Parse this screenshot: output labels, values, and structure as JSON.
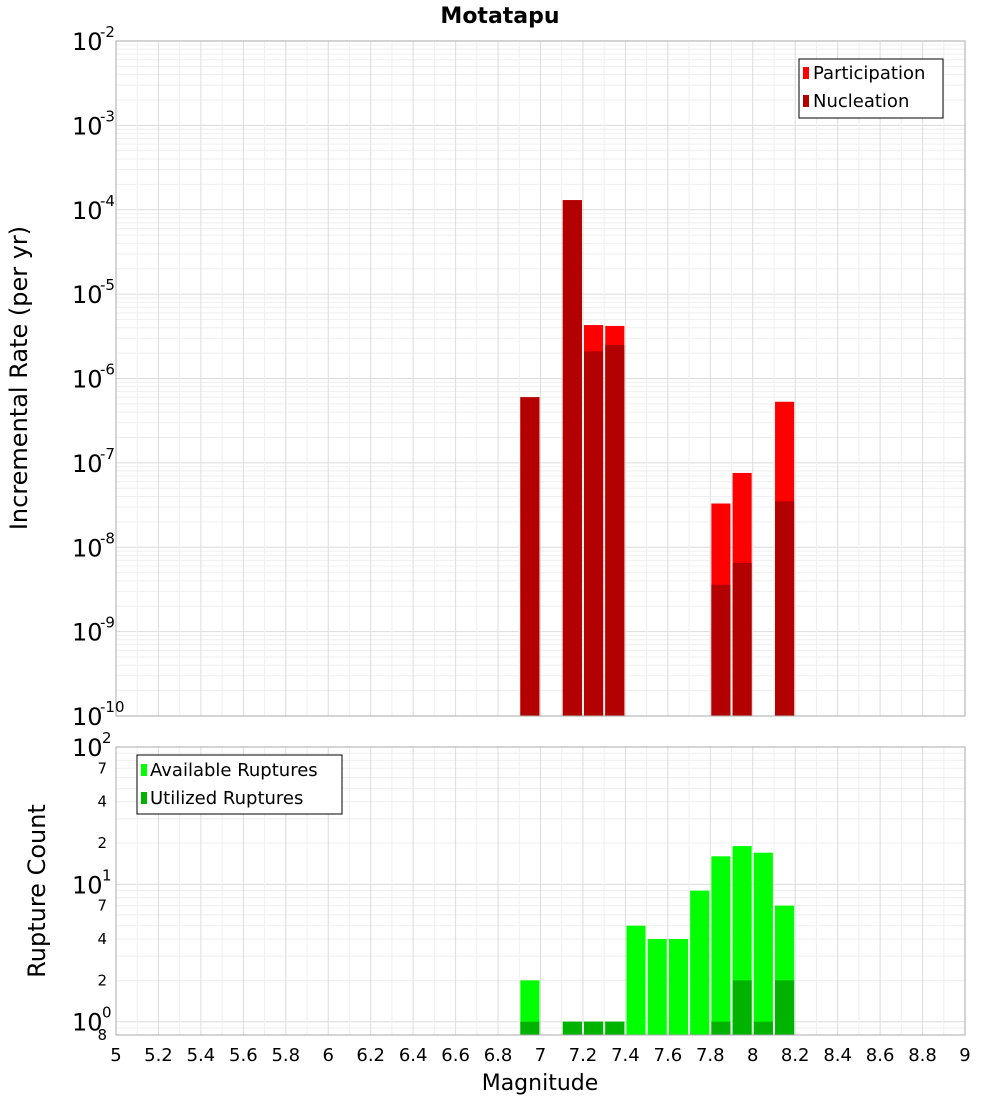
{
  "chart_data": [
    {
      "type": "bar",
      "title": "Motatapu",
      "xlabel": "",
      "ylabel": "Incremental Rate (per yr)",
      "yscale": "log",
      "xlim": [
        5,
        9
      ],
      "ylim": [
        1e-10,
        0.01
      ],
      "grid": true,
      "legend_position": "top-right",
      "y_tick_labels": [
        {
          "value": 1e-10,
          "base": "10",
          "exp": "-10"
        },
        {
          "value": 1e-09,
          "base": "10",
          "exp": "-9"
        },
        {
          "value": 1e-08,
          "base": "10",
          "exp": "-8"
        },
        {
          "value": 1e-07,
          "base": "10",
          "exp": "-7"
        },
        {
          "value": 1e-06,
          "base": "10",
          "exp": "-6"
        },
        {
          "value": 1e-05,
          "base": "10",
          "exp": "-5"
        },
        {
          "value": 0.0001,
          "base": "10",
          "exp": "-4"
        },
        {
          "value": 0.001,
          "base": "10",
          "exp": "-3"
        },
        {
          "value": 0.01,
          "base": "10",
          "exp": "-2"
        }
      ],
      "series": [
        {
          "name": "Participation",
          "color": "#ff0000",
          "x": [
            6.95,
            7.15,
            7.25,
            7.35,
            7.85,
            7.95,
            8.15
          ],
          "values": [
            6e-07,
            0.00013,
            4.3e-06,
            4.2e-06,
            3.3e-08,
            7.6e-08,
            5.3e-07
          ]
        },
        {
          "name": "Nucleation",
          "color": "#b30000",
          "x": [
            6.95,
            7.15,
            7.25,
            7.35,
            7.85,
            7.95,
            8.15
          ],
          "values": [
            6e-07,
            0.00013,
            2.1e-06,
            2.5e-06,
            3.6e-09,
            6.5e-09,
            3.5e-08
          ]
        }
      ]
    },
    {
      "type": "bar",
      "title": "",
      "xlabel": "Magnitude",
      "ylabel": "Rupture Count",
      "yscale": "log",
      "xlim": [
        5,
        9
      ],
      "ylim": [
        0.8,
        100
      ],
      "grid": true,
      "legend_position": "top-left",
      "x_ticks": [
        "5",
        "5.2",
        "5.4",
        "5.6",
        "5.8",
        "6",
        "6.2",
        "6.4",
        "6.6",
        "6.8",
        "7",
        "7.2",
        "7.4",
        "7.6",
        "7.8",
        "8",
        "8.2",
        "8.4",
        "8.6",
        "8.8",
        "9"
      ],
      "y_decade_labels": [
        {
          "value": 1,
          "base": "10",
          "exp": "0"
        },
        {
          "value": 10,
          "base": "10",
          "exp": "1"
        },
        {
          "value": 100,
          "base": "10",
          "exp": "2"
        }
      ],
      "y_minor_labels": [
        {
          "value": 0.8,
          "label": "8"
        },
        {
          "value": 2,
          "label": "2"
        },
        {
          "value": 4,
          "label": "4"
        },
        {
          "value": 7,
          "label": "7"
        },
        {
          "value": 20,
          "label": "2"
        },
        {
          "value": 40,
          "label": "4"
        },
        {
          "value": 70,
          "label": "7"
        }
      ],
      "series": [
        {
          "name": "Available Ruptures",
          "color": "#00ff00",
          "x": [
            6.95,
            7.15,
            7.25,
            7.35,
            7.45,
            7.55,
            7.65,
            7.75,
            7.85,
            7.95,
            8.05,
            8.15
          ],
          "values": [
            2,
            1,
            1,
            1,
            5,
            4,
            4,
            9,
            16,
            19,
            17,
            7
          ]
        },
        {
          "name": "Utilized Ruptures",
          "color": "#00b300",
          "x": [
            6.95,
            7.15,
            7.25,
            7.35,
            7.85,
            7.95,
            8.05,
            8.15
          ],
          "values": [
            1,
            1,
            1,
            1,
            1,
            2,
            1,
            2
          ]
        }
      ]
    }
  ]
}
